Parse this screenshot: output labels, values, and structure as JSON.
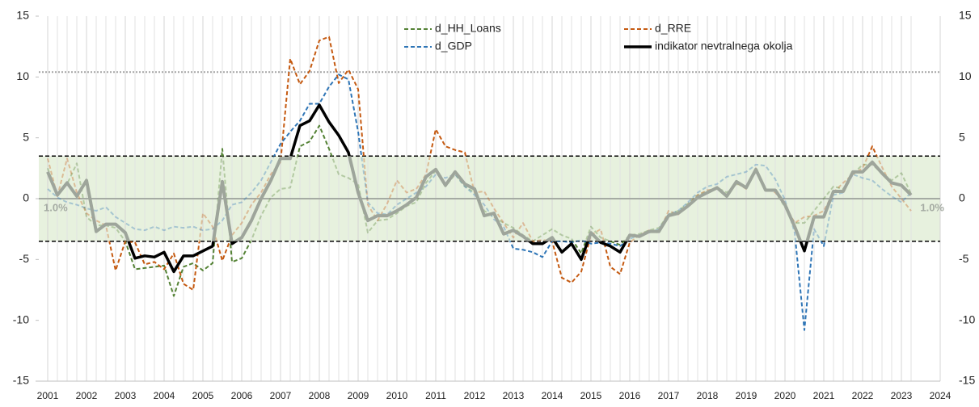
{
  "chart_data": {
    "type": "line",
    "x": [
      2001,
      2001.25,
      2001.5,
      2001.75,
      2002,
      2002.25,
      2002.5,
      2002.75,
      2003,
      2003.25,
      2003.5,
      2003.75,
      2004,
      2004.25,
      2004.5,
      2004.75,
      2005,
      2005.25,
      2005.5,
      2005.75,
      2006,
      2006.25,
      2006.5,
      2006.75,
      2007,
      2007.25,
      2007.5,
      2007.75,
      2008,
      2008.25,
      2008.5,
      2008.75,
      2009,
      2009.25,
      2009.5,
      2009.75,
      2010,
      2010.25,
      2010.5,
      2010.75,
      2011,
      2011.25,
      2011.5,
      2011.75,
      2012,
      2012.25,
      2012.5,
      2012.75,
      2013,
      2013.25,
      2013.5,
      2013.75,
      2014,
      2014.25,
      2014.5,
      2014.75,
      2015,
      2015.25,
      2015.5,
      2015.75,
      2016,
      2016.25,
      2016.5,
      2016.75,
      2017,
      2017.25,
      2017.5,
      2017.75,
      2018,
      2018.25,
      2018.5,
      2018.75,
      2019,
      2019.25,
      2019.5,
      2019.75,
      2020,
      2020.25,
      2020.5,
      2020.75,
      2021,
      2021.25,
      2021.5,
      2021.75,
      2022,
      2022.25,
      2022.5,
      2022.75,
      2023,
      2023.25
    ],
    "series": [
      {
        "name": "d_HH_Loans",
        "color": "#548235",
        "dashed": true,
        "values": [
          2.5,
          0.3,
          1.2,
          2.9,
          -1.5,
          -2.2,
          -2.2,
          -2.4,
          -3.5,
          -5.8,
          -5.7,
          -5.6,
          -5.5,
          -8.0,
          -5.6,
          -5.3,
          -5.9,
          -5.3,
          4.1,
          -5.2,
          -4.9,
          -3.4,
          -1.4,
          0.1,
          0.8,
          0.9,
          4.3,
          4.7,
          6.0,
          4.1,
          2.0,
          1.7,
          1.2,
          -2.8,
          -1.8,
          -1.7,
          -1.2,
          -0.6,
          -0.3,
          1.3,
          2.3,
          1.0,
          2.0,
          1.0,
          0.5,
          -1.0,
          -1.5,
          -2.0,
          -2.4,
          -3.0,
          -3.5,
          -3.0,
          -2.5,
          -3.0,
          -3.3,
          -4.5,
          -2.3,
          -3.2,
          -3.5,
          -3.8,
          -3.0,
          -2.9,
          -2.6,
          -2.4,
          -1.3,
          -1.0,
          -0.4,
          0.3,
          0.6,
          0.9,
          0.5,
          1.2,
          1.0,
          2.2,
          0.8,
          0.6,
          -0.7,
          -2.0,
          -2.0,
          -1.0,
          0.0,
          1.0,
          0.8,
          2.0,
          2.8,
          2.8,
          2.1,
          1.5,
          2.1,
          0.4
        ]
      },
      {
        "name": "d_RRE",
        "color": "#c55a11",
        "dashed": true,
        "values": [
          3.3,
          0.2,
          3.3,
          0.5,
          -1.2,
          -1.8,
          -2.2,
          -5.9,
          -3.5,
          -3.6,
          -5.4,
          -5.2,
          -5.8,
          -4.5,
          -7.0,
          -7.5,
          -1.2,
          -2.3,
          -5.1,
          -3.0,
          -2.0,
          -0.5,
          0.5,
          2.0,
          3.0,
          11.5,
          9.4,
          10.5,
          13.0,
          13.3,
          9.5,
          10.6,
          9.0,
          -0.5,
          -1.8,
          -0.4,
          1.5,
          0.5,
          0.8,
          2.0,
          5.7,
          4.3,
          4.0,
          3.8,
          0.5,
          0.6,
          -0.8,
          -2.0,
          -3.2,
          -2.0,
          -3.5,
          -3.4,
          -3.5,
          -6.5,
          -6.9,
          -6.0,
          -3.0,
          -2.5,
          -5.6,
          -6.2,
          -3.6,
          -3.0,
          -2.6,
          -2.8,
          -1.0,
          -1.3,
          -0.5,
          0.3,
          0.7,
          0.8,
          0.3,
          1.3,
          0.8,
          2.5,
          0.8,
          0.5,
          -0.5,
          -2.0,
          -1.5,
          -1.4,
          -1.0,
          0.5,
          1.3,
          2.0,
          2.5,
          4.3,
          2.6,
          1.0,
          0.0,
          -1.0
        ]
      },
      {
        "name": "d_GDP",
        "color": "#2e75b6",
        "dashed": true,
        "values": [
          0.8,
          0.1,
          -0.3,
          -0.5,
          -0.8,
          -1.0,
          -0.7,
          -1.5,
          -2.0,
          -2.5,
          -2.6,
          -2.3,
          -2.6,
          -2.3,
          -2.4,
          -2.3,
          -2.6,
          -2.5,
          -1.8,
          -0.5,
          -0.3,
          0.5,
          1.5,
          3.0,
          4.5,
          5.5,
          6.4,
          7.8,
          7.8,
          9.2,
          10.2,
          9.8,
          5.5,
          -0.3,
          -1.2,
          -1.3,
          -0.5,
          0.0,
          0.5,
          1.0,
          2.0,
          1.7,
          2.0,
          1.0,
          0.3,
          -0.5,
          -1.7,
          -2.3,
          -4.1,
          -4.2,
          -4.4,
          -4.8,
          -3.5,
          -3.5,
          -3.6,
          -3.4,
          -3.7,
          -3.6,
          -3.7,
          -3.9,
          -3.3,
          -3.0,
          -2.8,
          -2.5,
          -1.3,
          -1.0,
          -0.3,
          0.5,
          1.0,
          1.2,
          1.8,
          2.0,
          2.2,
          2.8,
          2.7,
          1.6,
          -0.1,
          -2.8,
          -10.8,
          -2.5,
          -3.9,
          0.3,
          0.5,
          2.0,
          1.7,
          1.5,
          0.8,
          0.2,
          -0.3,
          0.5
        ]
      },
      {
        "name": "indikator nevtralnega okolja",
        "color": "#000000",
        "band_color": "#9ea59b",
        "dashed": false,
        "values": [
          2.2,
          0.3,
          1.3,
          0.2,
          1.5,
          -2.7,
          -2.1,
          -2.1,
          -2.8,
          -4.9,
          -4.7,
          -4.8,
          -4.4,
          -6.0,
          -4.7,
          -4.7,
          -4.3,
          -3.9,
          1.4,
          -3.7,
          -3.2,
          -1.8,
          0.0,
          1.5,
          3.3,
          3.3,
          6.0,
          6.4,
          7.7,
          6.3,
          5.2,
          3.8,
          0.5,
          -1.8,
          -1.4,
          -1.4,
          -1.0,
          -0.5,
          0.1,
          1.8,
          2.4,
          1.1,
          2.2,
          1.2,
          0.8,
          -1.4,
          -1.2,
          -2.9,
          -2.6,
          -3.1,
          -3.7,
          -3.7,
          -3.2,
          -4.4,
          -3.7,
          -5.0,
          -2.8,
          -3.6,
          -3.9,
          -4.4,
          -3.0,
          -3.1,
          -2.7,
          -2.7,
          -1.4,
          -1.2,
          -0.6,
          0.1,
          0.5,
          0.9,
          0.2,
          1.4,
          0.9,
          2.4,
          0.7,
          0.7,
          -0.5,
          -2.3,
          -4.3,
          -1.5,
          -1.5,
          0.6,
          0.6,
          2.2,
          2.2,
          3.0,
          2.1,
          1.3,
          1.1,
          0.3
        ]
      }
    ],
    "xlim": [
      2001,
      2024
    ],
    "xticks": [
      2001,
      2002,
      2003,
      2004,
      2005,
      2006,
      2007,
      2008,
      2009,
      2010,
      2011,
      2012,
      2013,
      2014,
      2015,
      2016,
      2017,
      2018,
      2019,
      2020,
      2021,
      2022,
      2023,
      2024
    ],
    "ylim": [
      -15,
      15
    ],
    "yticks": [
      -15,
      -10,
      -5,
      0,
      5,
      10,
      15
    ],
    "band": {
      "range": [
        -3.5,
        3.5
      ],
      "fill": "#e7f1de"
    },
    "reference_line": 10.4,
    "band_label": "1.0%",
    "grid": true
  }
}
